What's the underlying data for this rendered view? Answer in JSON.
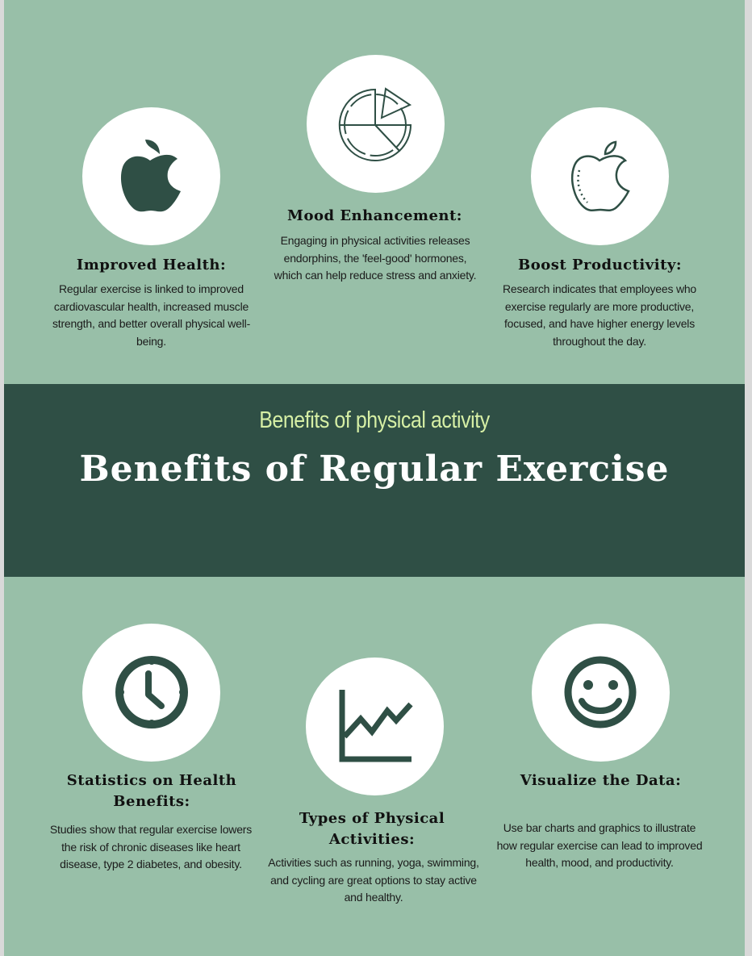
{
  "subtitle": "Benefits of physical activity",
  "title": "Benefits of Regular Exercise",
  "colors": {
    "background": "#98bfa8",
    "band": "#2f4f45",
    "icon": "#2f4f45",
    "subtitle": "#d6efa5"
  },
  "cards": [
    {
      "icon": "apple-solid-icon",
      "heading": "Improved Health:",
      "text": "Regular exercise is linked to improved cardiovascular health, increased muscle strength, and better overall physical well-being."
    },
    {
      "icon": "pie-chart-icon",
      "heading": "Mood Enhancement:",
      "text": "Engaging in physical activities releases endorphins, the 'feel-good' hormones, which can help reduce stress and anxiety."
    },
    {
      "icon": "apple-outline-icon",
      "heading": "Boost Productivity:",
      "text": "Research indicates that employees who exercise regularly are more productive, focused, and have higher energy levels throughout the day."
    },
    {
      "icon": "clock-icon",
      "heading": "Statistics on Health Benefits:",
      "text": "Studies show that regular exercise lowers the risk of chronic diseases like heart disease, type 2 diabetes, and obesity."
    },
    {
      "icon": "line-chart-icon",
      "heading": "Types of Physical Activities:",
      "text": "Activities such as running, yoga, swimming, and cycling are great options to stay active and healthy."
    },
    {
      "icon": "smiley-face-icon",
      "heading": "Visualize the Data:",
      "text": "Use bar charts and graphics to illustrate how regular exercise can lead to improved health, mood, and productivity."
    }
  ]
}
